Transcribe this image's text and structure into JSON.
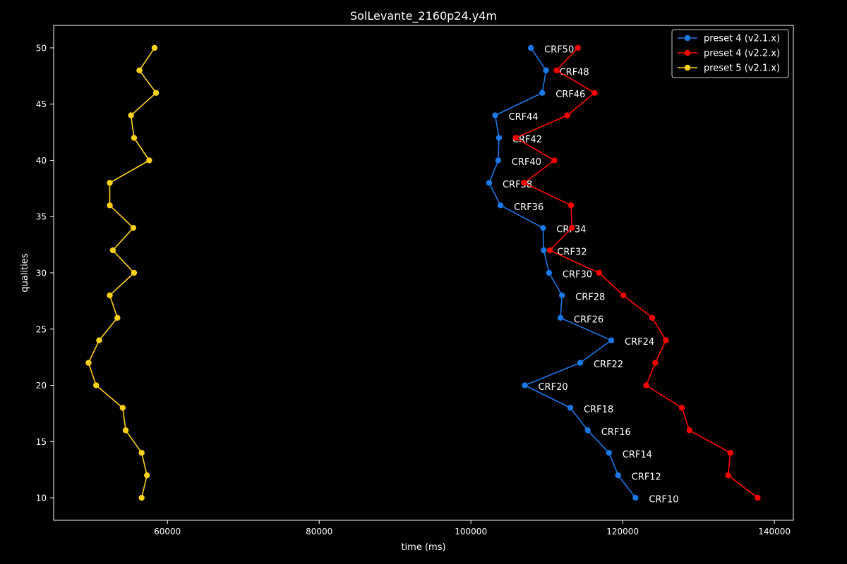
{
  "chart_data": {
    "type": "line",
    "title": "SolLevante_2160p24.y4m",
    "xlabel": "time (ms)",
    "ylabel": "qualities",
    "xlim": [
      45000,
      142500
    ],
    "ylim": [
      8,
      52
    ],
    "x_ticks": [
      60000,
      80000,
      100000,
      120000,
      140000
    ],
    "y_ticks": [
      10,
      15,
      20,
      25,
      30,
      35,
      40,
      45,
      50
    ],
    "grid": false,
    "legend_position": "top-right",
    "series": [
      {
        "name": "preset 4 (v2.1.x)",
        "color": "#1a78e6",
        "points": [
          {
            "x": 121700,
            "y": 10,
            "label": "CRF10"
          },
          {
            "x": 119400,
            "y": 12,
            "label": "CRF12"
          },
          {
            "x": 118200,
            "y": 14,
            "label": "CRF14"
          },
          {
            "x": 115400,
            "y": 16,
            "label": "CRF16"
          },
          {
            "x": 113100,
            "y": 18,
            "label": "CRF18"
          },
          {
            "x": 107100,
            "y": 20,
            "label": "CRF20"
          },
          {
            "x": 114400,
            "y": 22,
            "label": "CRF22"
          },
          {
            "x": 118500,
            "y": 24,
            "label": "CRF24"
          },
          {
            "x": 111800,
            "y": 26,
            "label": "CRF26"
          },
          {
            "x": 112000,
            "y": 28,
            "label": "CRF28"
          },
          {
            "x": 110300,
            "y": 30,
            "label": "CRF30"
          },
          {
            "x": 109600,
            "y": 32,
            "label": "CRF32"
          },
          {
            "x": 109500,
            "y": 34,
            "label": "CRF34"
          },
          {
            "x": 103900,
            "y": 36,
            "label": "CRF36"
          },
          {
            "x": 102400,
            "y": 38,
            "label": "CRF38"
          },
          {
            "x": 103600,
            "y": 40,
            "label": "CRF40"
          },
          {
            "x": 103700,
            "y": 42,
            "label": "CRF42"
          },
          {
            "x": 103200,
            "y": 44,
            "label": "CRF44"
          },
          {
            "x": 109400,
            "y": 46,
            "label": "CRF46"
          },
          {
            "x": 109900,
            "y": 48,
            "label": "CRF48"
          },
          {
            "x": 107900,
            "y": 50,
            "label": "CRF50"
          }
        ]
      },
      {
        "name": "preset 4 (v2.2.x)",
        "color": "#ff0000",
        "points": [
          {
            "x": 137800,
            "y": 10
          },
          {
            "x": 133900,
            "y": 12
          },
          {
            "x": 134200,
            "y": 14
          },
          {
            "x": 128800,
            "y": 16
          },
          {
            "x": 127800,
            "y": 18
          },
          {
            "x": 123100,
            "y": 20
          },
          {
            "x": 124300,
            "y": 22
          },
          {
            "x": 125700,
            "y": 24
          },
          {
            "x": 123900,
            "y": 26
          },
          {
            "x": 120100,
            "y": 28
          },
          {
            "x": 116900,
            "y": 30
          },
          {
            "x": 110400,
            "y": 32
          },
          {
            "x": 113300,
            "y": 34
          },
          {
            "x": 113200,
            "y": 36
          },
          {
            "x": 107000,
            "y": 38
          },
          {
            "x": 111000,
            "y": 40
          },
          {
            "x": 105900,
            "y": 42
          },
          {
            "x": 112700,
            "y": 44
          },
          {
            "x": 116300,
            "y": 46
          },
          {
            "x": 111300,
            "y": 48
          },
          {
            "x": 114100,
            "y": 50
          }
        ]
      },
      {
        "name": "preset 5 (v2.1.x)",
        "color": "#ffd21a",
        "points": [
          {
            "x": 56600,
            "y": 10
          },
          {
            "x": 57300,
            "y": 12
          },
          {
            "x": 56600,
            "y": 14
          },
          {
            "x": 54500,
            "y": 16
          },
          {
            "x": 54100,
            "y": 18
          },
          {
            "x": 50600,
            "y": 20
          },
          {
            "x": 49600,
            "y": 22
          },
          {
            "x": 51000,
            "y": 24
          },
          {
            "x": 53400,
            "y": 26
          },
          {
            "x": 52400,
            "y": 28
          },
          {
            "x": 55600,
            "y": 30
          },
          {
            "x": 52800,
            "y": 32
          },
          {
            "x": 55500,
            "y": 34
          },
          {
            "x": 52400,
            "y": 36
          },
          {
            "x": 52400,
            "y": 38
          },
          {
            "x": 57600,
            "y": 40
          },
          {
            "x": 55600,
            "y": 42
          },
          {
            "x": 55200,
            "y": 44
          },
          {
            "x": 58500,
            "y": 46
          },
          {
            "x": 56300,
            "y": 48
          },
          {
            "x": 58300,
            "y": 50
          }
        ]
      }
    ]
  }
}
